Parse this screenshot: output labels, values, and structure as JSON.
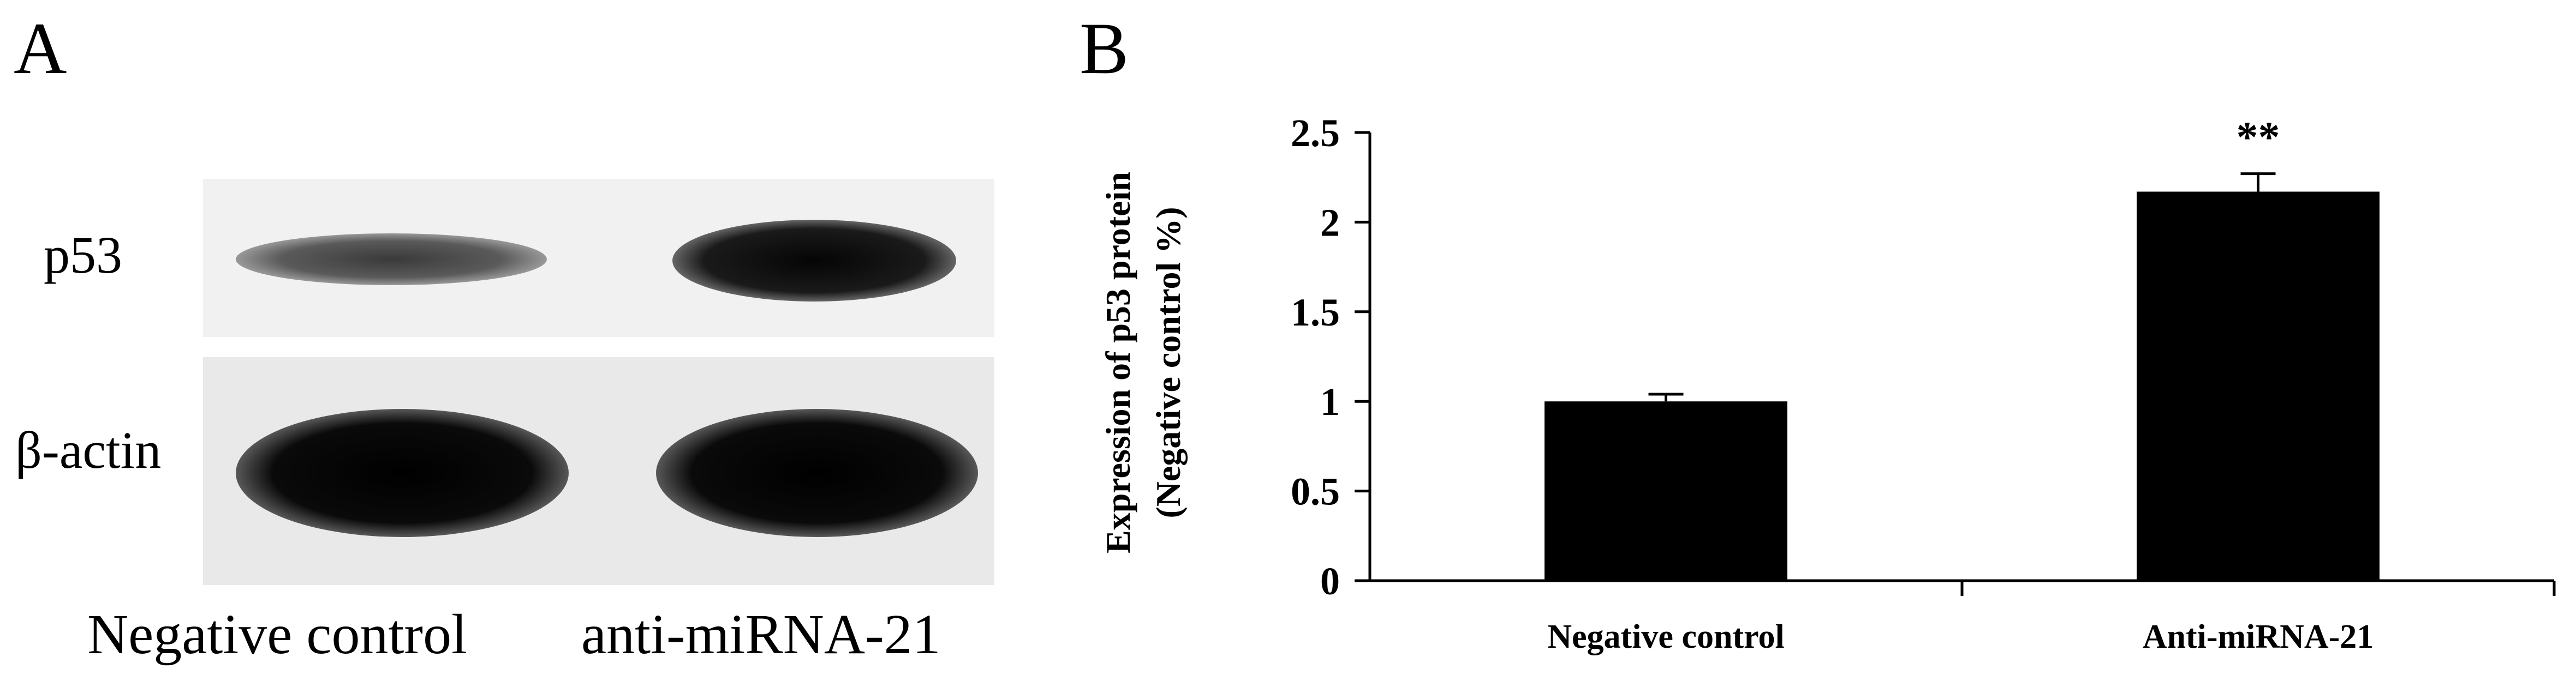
{
  "panel_a": {
    "letter": "A",
    "rows": [
      "p53",
      "β-actin"
    ],
    "lanes": [
      "Negative control",
      "anti-miRNA-21"
    ]
  },
  "panel_b": {
    "letter": "B"
  },
  "chart_data": {
    "type": "bar",
    "categories": [
      "Negative control",
      "Anti-miRNA-21"
    ],
    "values": [
      1.0,
      2.17
    ],
    "errors": [
      0.04,
      0.1
    ],
    "significance": [
      "",
      "**"
    ],
    "ylabel": [
      "Expression of p53 protein",
      "(Negative control %)"
    ],
    "xlabel": "",
    "ylim": [
      0,
      2.5
    ],
    "yticks": [
      0,
      0.5,
      1,
      1.5,
      2,
      2.5
    ],
    "ytick_labels": [
      "0",
      "0.5",
      "1",
      "1.5",
      "2",
      "2.5"
    ],
    "bar_color": "#000000"
  }
}
